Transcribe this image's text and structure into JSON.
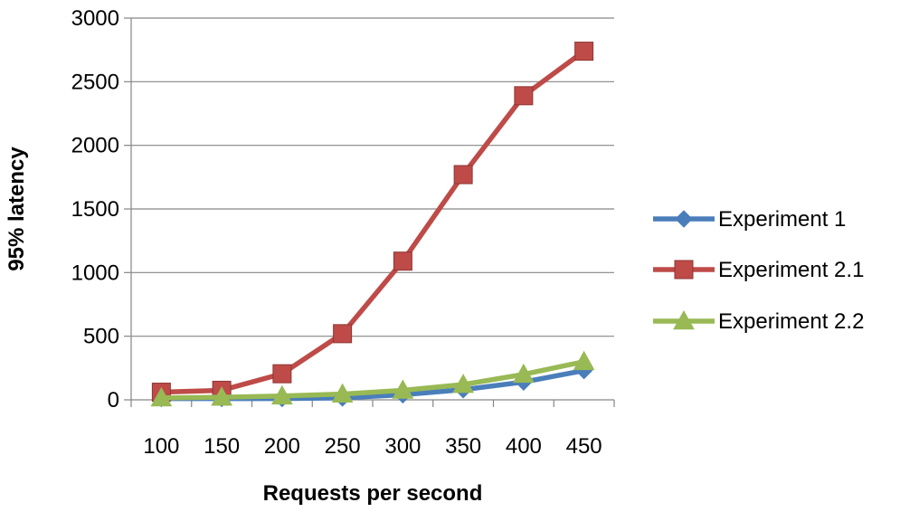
{
  "chart_data": {
    "type": "line",
    "title": "",
    "xlabel": "Requests per second",
    "ylabel": "95% latency",
    "categories": [
      "100",
      "150",
      "200",
      "250",
      "300",
      "350",
      "400",
      "450"
    ],
    "ylim": [
      0,
      3000
    ],
    "yticks": [
      0,
      500,
      1000,
      1500,
      2000,
      2500,
      3000
    ],
    "grid": true,
    "legend_position": "right",
    "series": [
      {
        "name": "Experiment 1",
        "marker": "diamond",
        "color": "#4a7ebb",
        "values": [
          10,
          10,
          10,
          15,
          40,
          80,
          140,
          230
        ]
      },
      {
        "name": "Experiment 2.1",
        "marker": "square",
        "color": "#be4b48",
        "values": [
          60,
          75,
          205,
          520,
          1090,
          1770,
          2390,
          2740
        ]
      },
      {
        "name": "Experiment 2.2",
        "marker": "triangle",
        "color": "#98b954",
        "values": [
          15,
          20,
          30,
          45,
          75,
          120,
          200,
          300
        ]
      }
    ]
  }
}
